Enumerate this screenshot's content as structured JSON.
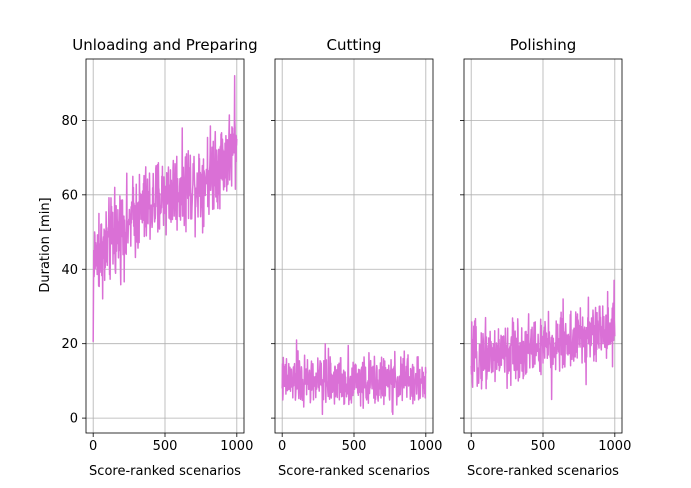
{
  "figure": {
    "ylabel": "Duration [min]"
  },
  "chart_data": [
    {
      "type": "line",
      "title": "Unloading and Preparing",
      "xlabel": "Score-ranked scenarios",
      "ylabel": "Duration [min]",
      "xlim": [
        -50,
        1050
      ],
      "ylim": [
        -4,
        96.5
      ],
      "xticks": [
        0,
        500,
        1000
      ],
      "yticks": [
        0,
        20,
        40,
        60,
        80
      ],
      "grid": true,
      "color": "#da70d6",
      "trend": [
        [
          0,
          42
        ],
        [
          250,
          53
        ],
        [
          500,
          60
        ],
        [
          750,
          64
        ],
        [
          1000,
          73
        ]
      ],
      "noise": 5.5,
      "x": [
        0,
        2,
        4,
        6,
        10,
        20,
        40,
        80,
        150,
        250,
        350,
        450,
        550,
        650,
        750,
        850,
        950,
        985,
        995,
        1000
      ],
      "y": [
        20.5,
        33,
        45,
        38,
        50,
        43,
        55,
        37,
        62,
        52,
        63,
        50,
        60,
        71,
        56,
        77,
        64,
        92,
        69,
        75
      ]
    },
    {
      "type": "line",
      "title": "Cutting",
      "xlabel": "Score-ranked scenarios",
      "xlim": [
        -50,
        1050
      ],
      "ylim": [
        -4,
        96.5
      ],
      "xticks": [
        0,
        500,
        1000
      ],
      "yticks": [
        0,
        20,
        40,
        60,
        80
      ],
      "grid": true,
      "color": "#da70d6",
      "trend": [
        [
          0,
          10
        ],
        [
          500,
          10
        ],
        [
          1000,
          10
        ]
      ],
      "noise": 3.2,
      "x": [
        0,
        100,
        150,
        280,
        300,
        460,
        600,
        770,
        850,
        1000
      ],
      "y": [
        8,
        21,
        3,
        1,
        20,
        19.5,
        4,
        1,
        18,
        12
      ]
    },
    {
      "type": "line",
      "title": "Polishing",
      "xlabel": "Score-ranked scenarios",
      "xlim": [
        -50,
        1050
      ],
      "ylim": [
        -4,
        96.5
      ],
      "xticks": [
        0,
        500,
        1000
      ],
      "yticks": [
        0,
        20,
        40,
        60,
        80
      ],
      "grid": true,
      "color": "#da70d6",
      "trend": [
        [
          0,
          16
        ],
        [
          500,
          19
        ],
        [
          1000,
          24
        ]
      ],
      "noise": 4,
      "x": [
        0,
        100,
        250,
        400,
        560,
        640,
        800,
        950,
        995,
        1000
      ],
      "y": [
        14,
        27,
        8,
        28,
        5,
        32,
        9,
        34,
        37,
        22
      ]
    }
  ]
}
